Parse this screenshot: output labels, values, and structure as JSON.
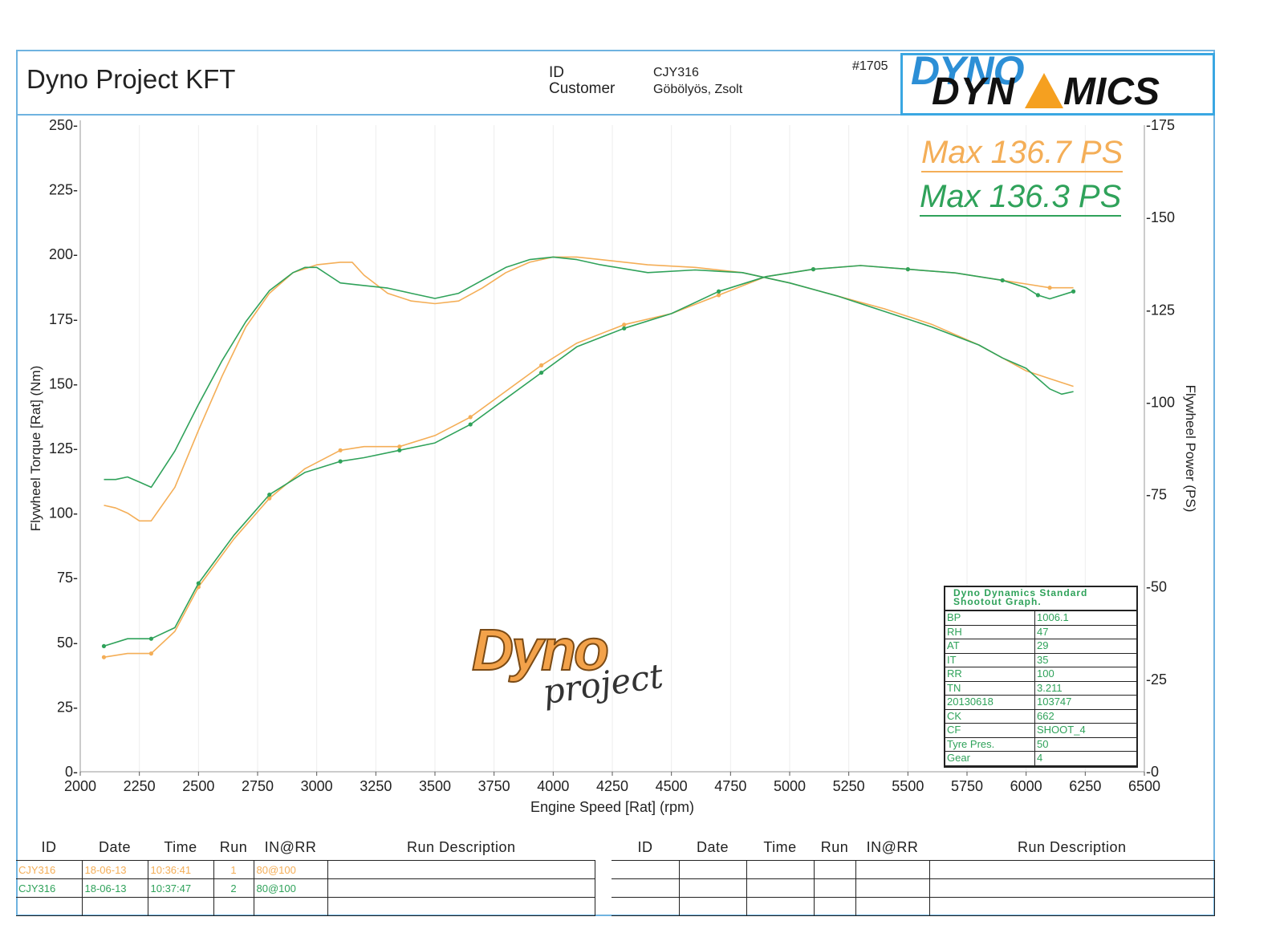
{
  "header": {
    "company": "Dyno Project KFT",
    "id_label": "ID",
    "id_value": "CJY316",
    "customer_label": "Customer",
    "customer_value": "Göbölyös, Zsolt",
    "job_number": "#1705",
    "logo_text_top": "DYNO",
    "logo_text_bottom_left": "DYN",
    "logo_text_bottom_right": "MICS"
  },
  "max_labels": [
    {
      "text": "Max 136.7 PS",
      "color": "#f4ae57"
    },
    {
      "text": "Max 136.3 PS",
      "color": "#2fa25a"
    }
  ],
  "watermark": {
    "line1": "Dyno",
    "line2": "project"
  },
  "chart_data": {
    "type": "line",
    "xlabel": "Engine Speed [Rat] (rpm)",
    "ylabel_left": "Flywheel Torque [Rat] (Nm)",
    "ylabel_right": "Flywheel Power (PS)",
    "xlim": [
      2000,
      6500
    ],
    "ylim_left": [
      0,
      250
    ],
    "ylim_right": [
      0,
      175
    ],
    "x_ticks": [
      2000,
      2250,
      2500,
      2750,
      3000,
      3250,
      3500,
      3750,
      4000,
      4250,
      4500,
      4750,
      5000,
      5250,
      5500,
      5750,
      6000,
      6250,
      6500
    ],
    "y_ticks_left": [
      0,
      25,
      50,
      75,
      100,
      125,
      150,
      175,
      200,
      225,
      250
    ],
    "y_ticks_right": [
      0,
      25,
      50,
      75,
      100,
      125,
      150,
      175
    ],
    "series": [
      {
        "color": "#f4ae57",
        "axis": "left",
        "x": [
          2100,
          2150,
          2200,
          2250,
          2300,
          2400,
          2500,
          2600,
          2700,
          2800,
          2900,
          3000,
          3100,
          3150,
          3200,
          3300,
          3400,
          3500,
          3600,
          3700,
          3800,
          3900,
          4000,
          4100,
          4200,
          4400,
          4600,
          4800,
          5000,
          5200,
          5400,
          5600,
          5800,
          5900,
          6000,
          6100,
          6200
        ],
        "y": [
          103,
          102,
          100,
          97,
          97,
          110,
          132,
          153,
          172,
          185,
          193,
          196,
          197,
          197,
          192,
          185,
          182,
          181,
          182,
          187,
          193,
          197,
          199,
          199,
          198,
          196,
          195,
          193,
          189,
          184,
          179,
          173,
          165,
          160,
          155,
          152,
          149
        ]
      },
      {
        "color": "#2fa25a",
        "axis": "left",
        "x": [
          2100,
          2150,
          2200,
          2250,
          2300,
          2400,
          2500,
          2600,
          2700,
          2800,
          2900,
          2950,
          3000,
          3050,
          3100,
          3200,
          3300,
          3400,
          3500,
          3600,
          3700,
          3800,
          3900,
          4000,
          4100,
          4200,
          4400,
          4600,
          4800,
          5000,
          5200,
          5400,
          5600,
          5800,
          5900,
          6000,
          6050,
          6100,
          6150,
          6200
        ],
        "y": [
          113,
          113,
          114,
          112,
          110,
          124,
          142,
          159,
          174,
          186,
          193,
          195,
          195,
          192,
          189,
          188,
          187,
          185,
          183,
          185,
          190,
          195,
          198,
          199,
          198,
          196,
          193,
          194,
          193,
          189,
          184,
          178,
          172,
          165,
          160,
          156,
          152,
          148,
          146,
          147
        ]
      },
      {
        "color": "#f4ae57",
        "axis": "right",
        "x": [
          2100,
          2200,
          2300,
          2400,
          2500,
          2650,
          2800,
          2950,
          3100,
          3200,
          3350,
          3500,
          3650,
          3800,
          3950,
          4100,
          4300,
          4500,
          4700,
          4900,
          5100,
          5300,
          5500,
          5700,
          5900,
          6000,
          6100,
          6200
        ],
        "y": [
          31,
          32,
          32,
          38,
          50,
          63,
          74,
          82,
          87,
          88,
          88,
          91,
          96,
          103,
          110,
          116,
          121,
          124,
          129,
          134,
          136,
          137,
          136,
          135,
          133,
          132,
          131,
          131
        ]
      },
      {
        "color": "#2fa25a",
        "axis": "right",
        "x": [
          2100,
          2200,
          2300,
          2400,
          2500,
          2650,
          2800,
          2950,
          3100,
          3200,
          3350,
          3500,
          3650,
          3800,
          3950,
          4100,
          4300,
          4500,
          4700,
          4900,
          5100,
          5300,
          5500,
          5700,
          5900,
          6000,
          6050,
          6100,
          6200
        ],
        "y": [
          34,
          36,
          36,
          39,
          51,
          64,
          75,
          81,
          84,
          85,
          87,
          89,
          94,
          101,
          108,
          115,
          120,
          124,
          130,
          134,
          136,
          137,
          136,
          135,
          133,
          131,
          129,
          128,
          130
        ]
      }
    ]
  },
  "shootout": {
    "title_line1": "Dyno Dynamics Standard",
    "title_line2": "Shootout Graph.",
    "rows": [
      {
        "k": "BP",
        "v": "1006.1"
      },
      {
        "k": "RH",
        "v": "47"
      },
      {
        "k": "AT",
        "v": "29"
      },
      {
        "k": "IT",
        "v": "35"
      },
      {
        "k": "RR",
        "v": "100"
      },
      {
        "k": "TN",
        "v": "3.211"
      },
      {
        "k": "20130618",
        "v": "103747"
      },
      {
        "k": "CK",
        "v": "662"
      },
      {
        "k": "CF",
        "v": "SHOOT_4"
      },
      {
        "k": "Tyre Pres.",
        "v": "50"
      },
      {
        "k": "Gear",
        "v": "4"
      }
    ]
  },
  "runs_table": {
    "headers": [
      "ID",
      "Date",
      "Time",
      "Run",
      "IN@RR",
      "Run Description"
    ],
    "rows": [
      {
        "id": "CJY316",
        "date": "18-06-13",
        "time": "10:36:41",
        "run": "1",
        "inrr": "80@100",
        "color": "#f4ae57"
      },
      {
        "id": "CJY316",
        "date": "18-06-13",
        "time": "10:37:47",
        "run": "2",
        "inrr": "80@100",
        "color": "#2fa25a"
      }
    ]
  }
}
